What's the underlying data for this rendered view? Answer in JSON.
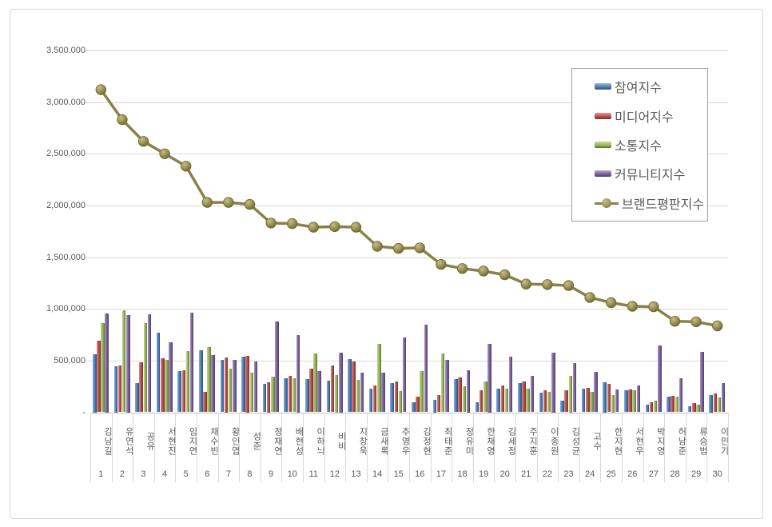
{
  "chart_data": {
    "type": "bar",
    "title": "",
    "categories": [
      "김남길",
      "유연석",
      "공유",
      "서현진",
      "임지연",
      "채수빈",
      "황인엽",
      "성준",
      "정채연",
      "배현성",
      "이하늬",
      "비비",
      "지창욱",
      "금새록",
      "추영우",
      "김정현",
      "최태준",
      "정유미",
      "한채영",
      "김세정",
      "주지훈",
      "이종원",
      "김성균",
      "고수",
      "한지현",
      "서현우",
      "박지영",
      "허남준",
      "류승범",
      "이민기"
    ],
    "ranks": [
      "1",
      "2",
      "3",
      "4",
      "5",
      "6",
      "7",
      "8",
      "9",
      "10",
      "11",
      "12",
      "13",
      "14",
      "15",
      "16",
      "17",
      "18",
      "19",
      "20",
      "21",
      "22",
      "23",
      "24",
      "25",
      "26",
      "27",
      "28",
      "29",
      "30"
    ],
    "series": [
      {
        "name": "참여지수",
        "key": "participation",
        "type": "bar",
        "color": "#4F81BD",
        "values": [
          565000,
          445000,
          285000,
          770000,
          395000,
          600000,
          510000,
          540000,
          275000,
          330000,
          320000,
          305000,
          515000,
          225000,
          285000,
          95000,
          120000,
          320000,
          95000,
          225000,
          280000,
          190000,
          115000,
          230000,
          290000,
          210000,
          75000,
          150000,
          55000,
          170000
        ]
      },
      {
        "name": "미디어지수",
        "key": "media",
        "type": "bar",
        "color": "#C0504D",
        "values": [
          690000,
          450000,
          480000,
          520000,
          405000,
          200000,
          530000,
          545000,
          290000,
          355000,
          425000,
          450000,
          490000,
          260000,
          300000,
          150000,
          165000,
          335000,
          215000,
          260000,
          295000,
          210000,
          210000,
          235000,
          275000,
          220000,
          100000,
          160000,
          90000,
          185000
        ]
      },
      {
        "name": "소통지수",
        "key": "communication",
        "type": "bar",
        "color": "#9BBB59",
        "values": [
          860000,
          985000,
          865000,
          510000,
          590000,
          630000,
          425000,
          385000,
          345000,
          330000,
          570000,
          360000,
          310000,
          660000,
          205000,
          395000,
          570000,
          250000,
          300000,
          225000,
          230000,
          195000,
          350000,
          200000,
          170000,
          215000,
          115000,
          150000,
          75000,
          145000
        ]
      },
      {
        "name": "커뮤니티지수",
        "key": "community",
        "type": "bar",
        "color": "#8064A2",
        "values": [
          955000,
          940000,
          945000,
          680000,
          960000,
          550000,
          510000,
          490000,
          875000,
          750000,
          400000,
          580000,
          380000,
          385000,
          720000,
          850000,
          505000,
          410000,
          665000,
          535000,
          355000,
          580000,
          475000,
          390000,
          220000,
          260000,
          645000,
          330000,
          585000,
          285000
        ]
      },
      {
        "name": "브랜드평판지수",
        "key": "brand",
        "type": "line",
        "color": "#8a8148",
        "marker_fill": "#9a9257",
        "values": [
          3120000,
          2830000,
          2620000,
          2500000,
          2380000,
          2030000,
          2030000,
          2010000,
          1830000,
          1825000,
          1790000,
          1795000,
          1790000,
          1605000,
          1585000,
          1590000,
          1430000,
          1390000,
          1365000,
          1330000,
          1240000,
          1235000,
          1225000,
          1110000,
          1060000,
          1025000,
          1020000,
          880000,
          875000,
          835000
        ]
      }
    ],
    "y_axis": {
      "min": 0,
      "max": 3500000,
      "step": 500000,
      "tick_labels": [
        "-",
        "500,000",
        "1,000,000",
        "1,500,000",
        "2,000,000",
        "2,500,000",
        "3,000,000",
        "3,500,000"
      ]
    },
    "grid": true,
    "legend_position": "top-right"
  }
}
